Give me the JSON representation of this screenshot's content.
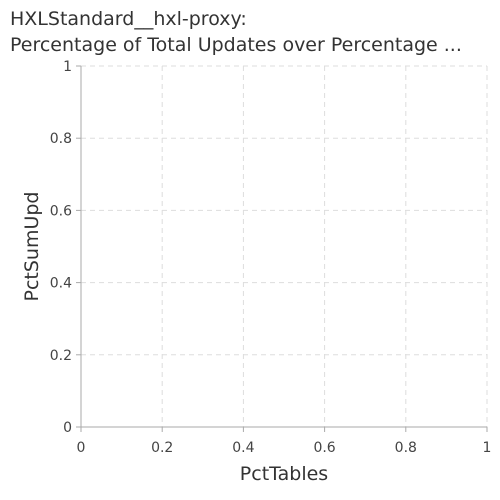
{
  "chart_data": {
    "type": "line",
    "title_lines": [
      "HXLStandard__hxl-proxy:",
      "Percentage of Total Updates over Percentage ..."
    ],
    "xlabel": "PctTables",
    "ylabel": "PctSumUpd",
    "xlim": [
      0,
      1
    ],
    "ylim": [
      0,
      1
    ],
    "xticks": [
      0,
      0.2,
      0.4,
      0.6,
      0.8,
      1
    ],
    "yticks": [
      0,
      0.2,
      0.4,
      0.6,
      0.8,
      1
    ],
    "x_tick_labels": [
      "0",
      "0.2",
      "0.4",
      "0.6",
      "0.8",
      "1"
    ],
    "y_tick_labels": [
      "0",
      "0.2",
      "0.4",
      "0.6",
      "0.8",
      "1"
    ],
    "grid": true,
    "series": []
  }
}
